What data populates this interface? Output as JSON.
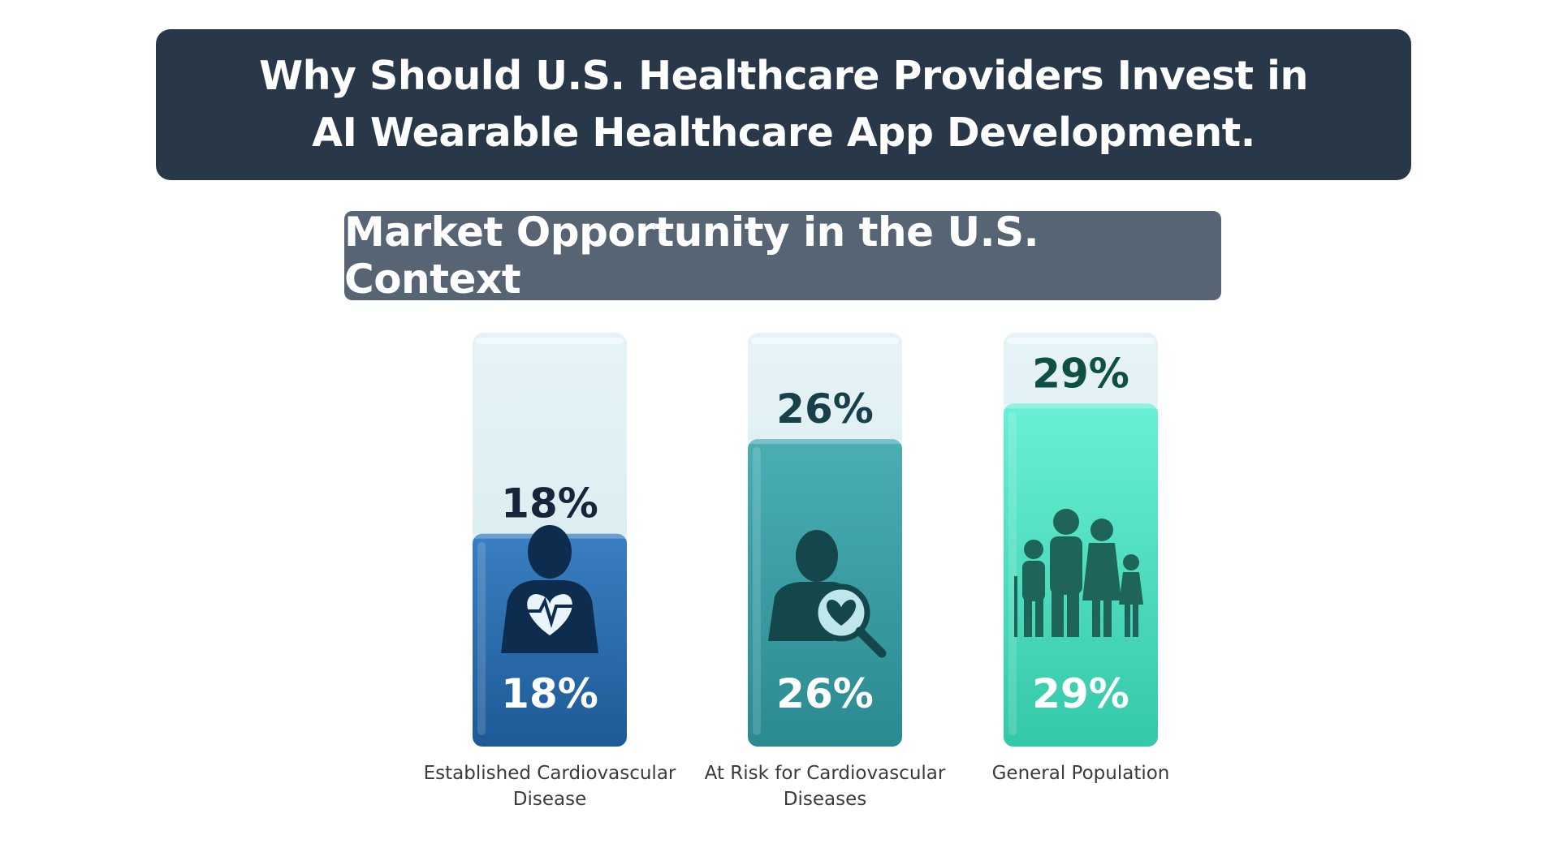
{
  "header": {
    "title": "Why Should U.S. Healthcare Providers Invest in AI Wearable Healthcare App Development.",
    "subtitle": "Market Opportunity in the U.S. Context"
  },
  "colors": {
    "title_bg": "#283849",
    "subtitle_bg": "#576474",
    "bar1_fill": "#2f6fae",
    "bar2_fill": "#3aa3a8",
    "bar3_fill": "#4fe3c4",
    "bar_empty": "#dbeef3"
  },
  "chart_data": {
    "type": "bar",
    "title": "",
    "xlabel": "",
    "ylabel": "",
    "categories": [
      "Established Cardiovascular Disease",
      "At Risk for Cardiovascular Diseases",
      "General Population"
    ],
    "values": [
      18,
      26,
      29
    ],
    "value_labels": [
      "18%",
      "26%",
      "29%"
    ],
    "icons": [
      "person-heart-icon",
      "person-magnifier-heart-icon",
      "family-icon"
    ],
    "grid": false,
    "legend": "none"
  }
}
